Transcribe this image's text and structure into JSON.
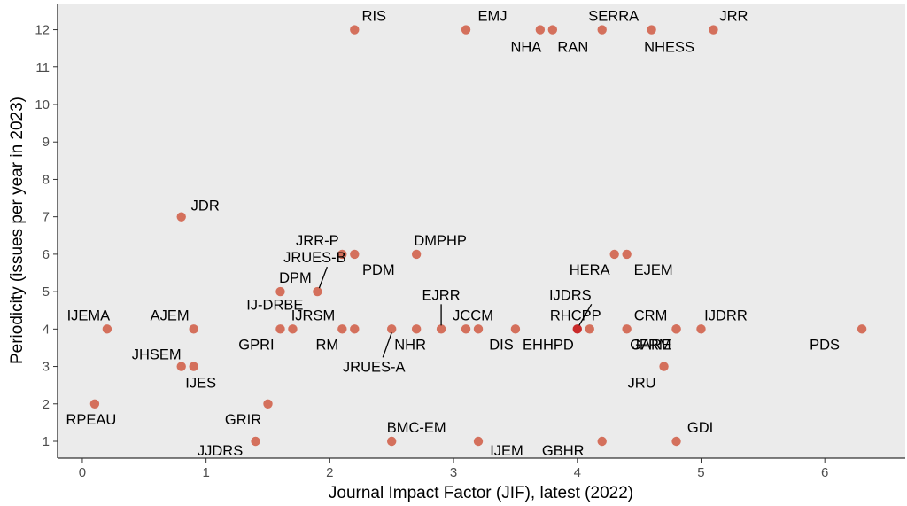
{
  "chart_data": {
    "type": "scatter",
    "title": "",
    "xlabel": "Journal Impact Factor (JIF), latest (2022)",
    "ylabel": "Periodicity (issues per year in 2023)",
    "xlim": [
      -0.2,
      6.65
    ],
    "ylim": [
      0.55,
      12.7
    ],
    "x_ticks": [
      0,
      1,
      2,
      3,
      4,
      5,
      6
    ],
    "y_ticks": [
      1,
      2,
      3,
      4,
      5,
      6,
      7,
      8,
      9,
      10,
      11,
      12
    ],
    "grid": false,
    "panel_color": "#ebebeb",
    "point_color": "#d4705c",
    "highlight_color": "#c92a2a",
    "points": [
      {
        "label": "RIS",
        "x": 2.2,
        "y": 12
      },
      {
        "label": "EMJ",
        "x": 3.1,
        "y": 12
      },
      {
        "label": "NHA",
        "x": 3.7,
        "y": 12
      },
      {
        "label": "RAN",
        "x": 3.8,
        "y": 12
      },
      {
        "label": "SERRA",
        "x": 4.2,
        "y": 12
      },
      {
        "label": "NHESS",
        "x": 4.6,
        "y": 12
      },
      {
        "label": "JRR",
        "x": 5.1,
        "y": 12
      },
      {
        "label": "JDR",
        "x": 0.8,
        "y": 7
      },
      {
        "label": "JRR-P",
        "x": 2.1,
        "y": 6
      },
      {
        "label": "PDM",
        "x": 2.2,
        "y": 6
      },
      {
        "label": "DMPHP",
        "x": 2.7,
        "y": 6
      },
      {
        "label": "HERA",
        "x": 4.3,
        "y": 6
      },
      {
        "label": "EJEM",
        "x": 4.4,
        "y": 6
      },
      {
        "label": "DPM",
        "x": 1.6,
        "y": 5
      },
      {
        "label": "JRUES-B",
        "x": 1.9,
        "y": 5
      },
      {
        "label": "IJEMA",
        "x": 0.2,
        "y": 4
      },
      {
        "label": "AJEM",
        "x": 0.9,
        "y": 4
      },
      {
        "label": "GPRI",
        "x": 1.6,
        "y": 4
      },
      {
        "label": "IJRSM",
        "x": 1.7,
        "y": 4
      },
      {
        "label": "RM",
        "x": 2.1,
        "y": 4
      },
      {
        "label": "IJ-DRBE",
        "x": 2.2,
        "y": 4
      },
      {
        "label": "JRUES-A",
        "x": 2.5,
        "y": 4
      },
      {
        "label": "NHR",
        "x": 2.7,
        "y": 4
      },
      {
        "label": "EJRR",
        "x": 2.9,
        "y": 4
      },
      {
        "label": "JCCM",
        "x": 3.1,
        "y": 4
      },
      {
        "label": "DIS",
        "x": 3.2,
        "y": 4
      },
      {
        "label": "EHHPD",
        "x": 3.5,
        "y": 4
      },
      {
        "label": "IJDRS",
        "x": 4.0,
        "y": 4,
        "highlight": true
      },
      {
        "label": "RHCPP",
        "x": 4.1,
        "y": 4
      },
      {
        "label": "JFRM",
        "x": 4.4,
        "y": 4
      },
      {
        "label": "CRM",
        "x": 4.8,
        "y": 4
      },
      {
        "label": "GARE",
        "x": 4.8,
        "y": 4
      },
      {
        "label": "IJDRR",
        "x": 5.0,
        "y": 4
      },
      {
        "label": "PDS",
        "x": 6.3,
        "y": 4
      },
      {
        "label": "JHSEM",
        "x": 0.8,
        "y": 3
      },
      {
        "label": "IJES",
        "x": 0.9,
        "y": 3
      },
      {
        "label": "JRU",
        "x": 4.7,
        "y": 3
      },
      {
        "label": "RPEAU",
        "x": 0.1,
        "y": 2
      },
      {
        "label": "GRIR",
        "x": 1.5,
        "y": 2
      },
      {
        "label": "JJDRS",
        "x": 1.4,
        "y": 1
      },
      {
        "label": "BMC-EM",
        "x": 2.5,
        "y": 1
      },
      {
        "label": "IJEM",
        "x": 3.2,
        "y": 1
      },
      {
        "label": "GBHR",
        "x": 4.2,
        "y": 1
      },
      {
        "label": "GDI",
        "x": 4.8,
        "y": 1
      }
    ]
  }
}
